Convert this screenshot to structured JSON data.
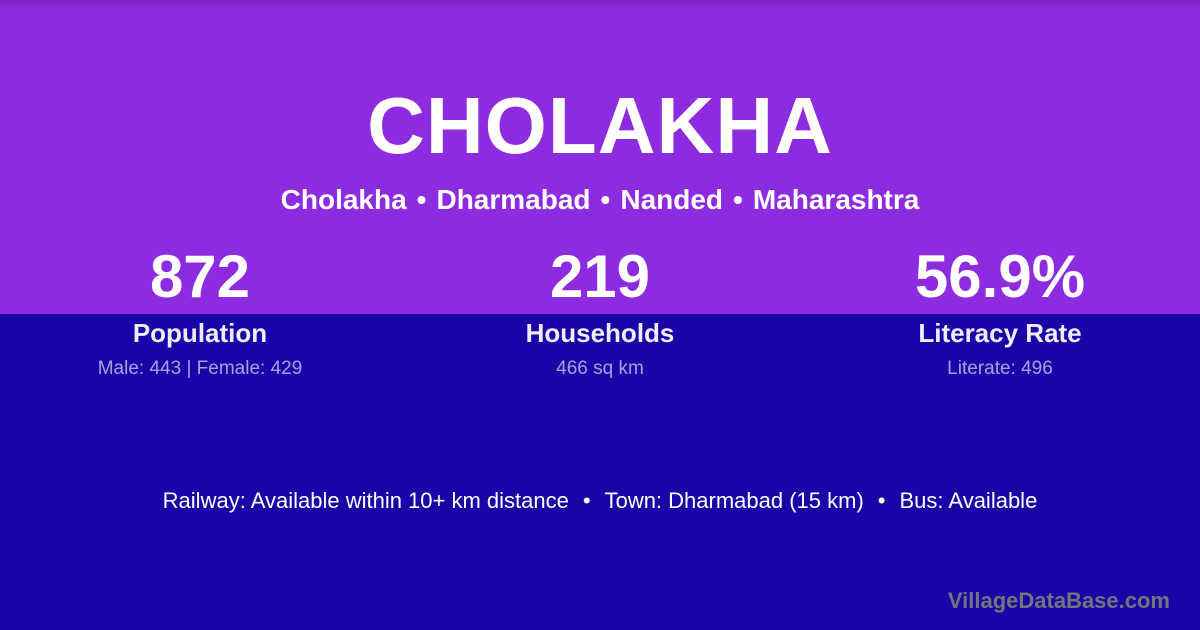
{
  "header": {
    "title": "CHOLAKHA",
    "breadcrumb_parts": [
      "Cholakha",
      "Dharmabad",
      "Nanded",
      "Maharashtra"
    ],
    "separator": "•"
  },
  "stats": [
    {
      "value": "872",
      "label": "Population",
      "sub": "Male: 443 | Female: 429"
    },
    {
      "value": "219",
      "label": "Households",
      "sub": "466 sq km"
    },
    {
      "value": "56.9%",
      "label": "Literacy Rate",
      "sub": "Literate: 496"
    }
  ],
  "info": {
    "items": [
      "Railway: Available within 10+ km distance",
      "Town: Dharmabad (15 km)",
      "Bus: Available"
    ],
    "separator": "•"
  },
  "watermark": "VillageDataBase.com",
  "colors": {
    "top_purple": "#8C2BDF",
    "bottom_blue": "#1A04A8",
    "text_primary": "#FFFFFF",
    "text_muted": "#B4ABDF",
    "watermark_gray": "#74747C"
  }
}
